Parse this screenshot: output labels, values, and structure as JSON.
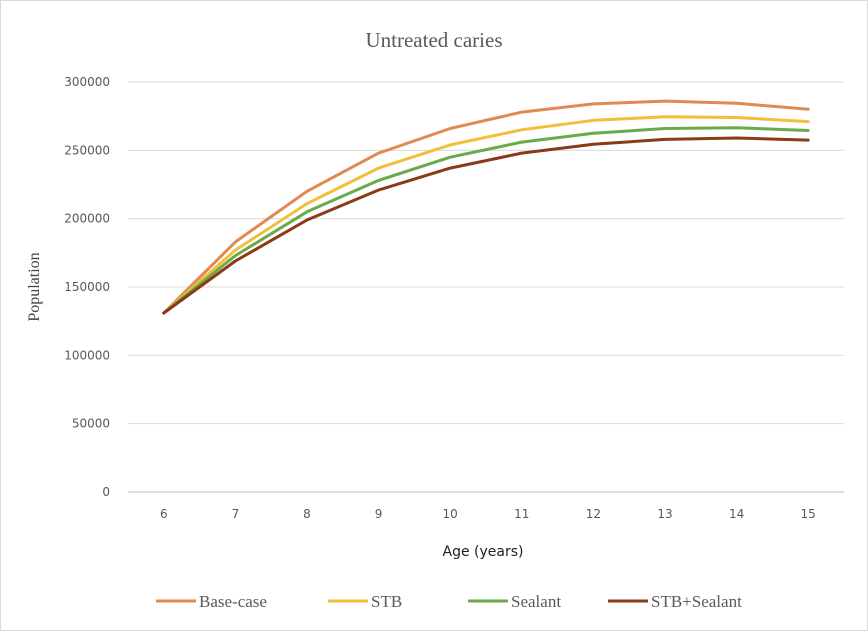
{
  "chart_data": {
    "type": "line",
    "title": "Untreated caries",
    "xlabel": "Age (years)",
    "ylabel": "Population",
    "x": [
      6,
      7,
      8,
      9,
      10,
      11,
      12,
      13,
      14,
      15
    ],
    "ylim": [
      0,
      300000
    ],
    "yticks": [
      0,
      50000,
      100000,
      150000,
      200000,
      250000,
      300000
    ],
    "grid": true,
    "legend_position": "bottom",
    "series": [
      {
        "name": "Base-case",
        "color": "#e08a52",
        "values": [
          131000,
          183000,
          220000,
          248000,
          266000,
          278000,
          284000,
          286000,
          284500,
          280000
        ]
      },
      {
        "name": "STB",
        "color": "#f2be3c",
        "values": [
          131000,
          177000,
          211000,
          237000,
          254000,
          265000,
          272000,
          274500,
          274000,
          271000
        ]
      },
      {
        "name": "Sealant",
        "color": "#6aaa4a",
        "values": [
          131000,
          173000,
          205000,
          228000,
          245000,
          256000,
          262500,
          266000,
          266500,
          264500
        ]
      },
      {
        "name": "STB+Sealant",
        "color": "#8b3a17",
        "values": [
          131000,
          169000,
          199000,
          221000,
          237000,
          248000,
          254500,
          258000,
          259000,
          257500
        ]
      }
    ]
  }
}
